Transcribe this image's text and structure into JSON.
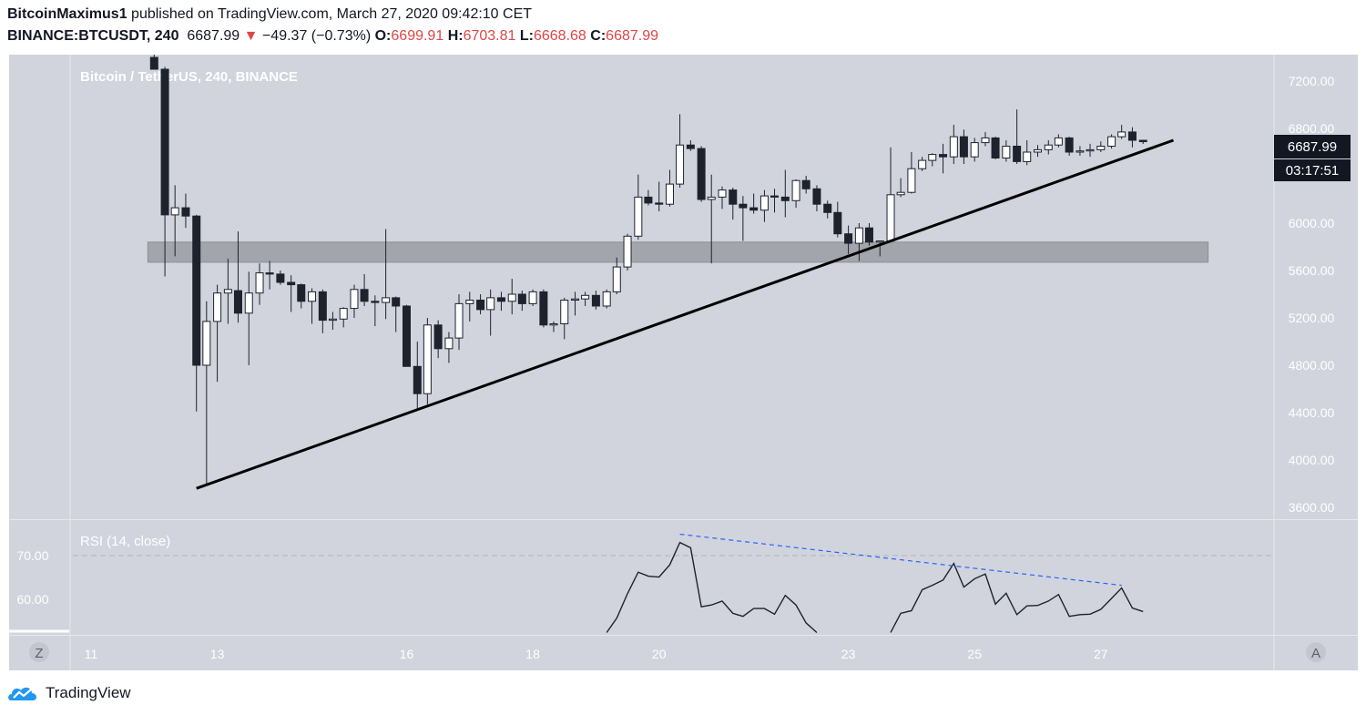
{
  "header": {
    "author": "BitcoinMaximus1",
    "published_text": "published on TradingView.com, March 27, 2020 09:42:10 CET",
    "symbol": "BINANCE:BTCUSDT, 240",
    "last_price": "6687.99",
    "change_arrow": "▼",
    "change": "−49.37 (−0.73%)",
    "o_label": "O:",
    "o_value": "6699.91",
    "h_label": "H:",
    "h_value": "6703.81",
    "l_label": "L:",
    "l_value": "6668.68",
    "c_label": "C:",
    "c_value": "6687.99"
  },
  "chart": {
    "legend": "Bitcoin / TetherUS, 240, BINANCE",
    "price_label": "6687.99",
    "countdown_label": "03:17:51",
    "rsi_label": "RSI (14, close)",
    "left_button": "Z",
    "right_button": "A",
    "colors": {
      "background": "#d1d4dc",
      "up_body": "#ffffff",
      "down_body": "#1e222d",
      "wick": "#1e222d",
      "trendline": "#000000",
      "zone": "#9b9ca3",
      "rsi_line": "#1e222d",
      "rsi_trend": "#2962ff",
      "axis_text": "#ffffff"
    }
  },
  "footer": {
    "brand": "TradingView",
    "logo_icon": "tradingview-cloud-logo"
  },
  "chart_data": [
    {
      "type": "candlestick",
      "title": "Bitcoin / TetherUS, 240, BINANCE",
      "y_ticks": [
        7200,
        6800,
        6400,
        6000,
        5600,
        5200,
        4800,
        4400,
        4000,
        3600
      ],
      "y_tick_labels": [
        "7200.00",
        "6800.00",
        "6400.00",
        "6000.00",
        "5600.00",
        "5200.00",
        "4800.00",
        "4400.00",
        "4000.00",
        "3600.00"
      ],
      "ylim": [
        3600,
        7400
      ],
      "x_ticks": [
        11,
        13,
        16,
        18,
        20,
        23,
        25,
        27
      ],
      "x_tick_labels": [
        "11",
        "13",
        "16",
        "18",
        "20",
        "23",
        "25",
        "27"
      ],
      "xlim": [
        10.5,
        29.3
      ],
      "candles": [
        {
          "t": 12.0,
          "o": 7400,
          "h": 7500,
          "l": 7300,
          "c": 7300
        },
        {
          "t": 12.17,
          "o": 7300,
          "h": 7320,
          "l": 5550,
          "c": 6070
        },
        {
          "t": 12.33,
          "o": 6070,
          "h": 6320,
          "l": 5720,
          "c": 6130
        },
        {
          "t": 12.5,
          "o": 6130,
          "h": 6250,
          "l": 5960,
          "c": 6060
        },
        {
          "t": 12.67,
          "o": 6060,
          "h": 6070,
          "l": 4410,
          "c": 4800
        },
        {
          "t": 12.83,
          "o": 4800,
          "h": 5340,
          "l": 3800,
          "c": 5170
        },
        {
          "t": 13.0,
          "o": 5170,
          "h": 5480,
          "l": 4660,
          "c": 5410
        },
        {
          "t": 13.17,
          "o": 5410,
          "h": 5700,
          "l": 5150,
          "c": 5440
        },
        {
          "t": 13.33,
          "o": 5430,
          "h": 5930,
          "l": 5160,
          "c": 5240
        },
        {
          "t": 13.5,
          "o": 5240,
          "h": 5590,
          "l": 4800,
          "c": 5410
        },
        {
          "t": 13.67,
          "o": 5410,
          "h": 5660,
          "l": 5310,
          "c": 5580
        },
        {
          "t": 13.83,
          "o": 5580,
          "h": 5680,
          "l": 5440,
          "c": 5570
        },
        {
          "t": 14.0,
          "o": 5570,
          "h": 5600,
          "l": 5480,
          "c": 5500
        },
        {
          "t": 14.17,
          "o": 5500,
          "h": 5560,
          "l": 5250,
          "c": 5480
        },
        {
          "t": 14.33,
          "o": 5480,
          "h": 5490,
          "l": 5280,
          "c": 5340
        },
        {
          "t": 14.5,
          "o": 5340,
          "h": 5450,
          "l": 5150,
          "c": 5420
        },
        {
          "t": 14.67,
          "o": 5420,
          "h": 5440,
          "l": 5070,
          "c": 5180
        },
        {
          "t": 14.83,
          "o": 5180,
          "h": 5250,
          "l": 5100,
          "c": 5190
        },
        {
          "t": 15.0,
          "o": 5190,
          "h": 5290,
          "l": 5120,
          "c": 5280
        },
        {
          "t": 15.17,
          "o": 5280,
          "h": 5480,
          "l": 5200,
          "c": 5440
        },
        {
          "t": 15.33,
          "o": 5440,
          "h": 5570,
          "l": 5300,
          "c": 5340
        },
        {
          "t": 15.5,
          "o": 5340,
          "h": 5390,
          "l": 5130,
          "c": 5330
        },
        {
          "t": 15.67,
          "o": 5330,
          "h": 5950,
          "l": 5190,
          "c": 5370
        },
        {
          "t": 15.83,
          "o": 5370,
          "h": 5380,
          "l": 5080,
          "c": 5300
        },
        {
          "t": 16.0,
          "o": 5300,
          "h": 5310,
          "l": 4790,
          "c": 4790
        },
        {
          "t": 16.17,
          "o": 4790,
          "h": 5000,
          "l": 4430,
          "c": 4560
        },
        {
          "t": 16.33,
          "o": 4560,
          "h": 5200,
          "l": 4470,
          "c": 5140
        },
        {
          "t": 16.5,
          "o": 5140,
          "h": 5180,
          "l": 4860,
          "c": 4940
        },
        {
          "t": 16.67,
          "o": 4940,
          "h": 5080,
          "l": 4820,
          "c": 5030
        },
        {
          "t": 16.83,
          "o": 5030,
          "h": 5400,
          "l": 4930,
          "c": 5320
        },
        {
          "t": 17.0,
          "o": 5320,
          "h": 5420,
          "l": 5170,
          "c": 5350
        },
        {
          "t": 17.17,
          "o": 5350,
          "h": 5400,
          "l": 5230,
          "c": 5270
        },
        {
          "t": 17.33,
          "o": 5270,
          "h": 5440,
          "l": 5050,
          "c": 5370
        },
        {
          "t": 17.5,
          "o": 5370,
          "h": 5420,
          "l": 5260,
          "c": 5340
        },
        {
          "t": 17.67,
          "o": 5340,
          "h": 5530,
          "l": 5230,
          "c": 5400
        },
        {
          "t": 17.83,
          "o": 5400,
          "h": 5430,
          "l": 5260,
          "c": 5320
        },
        {
          "t": 18.0,
          "o": 5320,
          "h": 5440,
          "l": 5300,
          "c": 5420
        },
        {
          "t": 18.17,
          "o": 5420,
          "h": 5440,
          "l": 5120,
          "c": 5140
        },
        {
          "t": 18.33,
          "o": 5140,
          "h": 5170,
          "l": 5080,
          "c": 5150
        },
        {
          "t": 18.5,
          "o": 5150,
          "h": 5370,
          "l": 5020,
          "c": 5350
        },
        {
          "t": 18.67,
          "o": 5350,
          "h": 5420,
          "l": 5220,
          "c": 5360
        },
        {
          "t": 18.83,
          "o": 5360,
          "h": 5420,
          "l": 5300,
          "c": 5390
        },
        {
          "t": 19.0,
          "o": 5390,
          "h": 5430,
          "l": 5270,
          "c": 5300
        },
        {
          "t": 19.17,
          "o": 5300,
          "h": 5440,
          "l": 5280,
          "c": 5420
        },
        {
          "t": 19.33,
          "o": 5420,
          "h": 5710,
          "l": 5400,
          "c": 5630
        },
        {
          "t": 19.5,
          "o": 5630,
          "h": 5910,
          "l": 5600,
          "c": 5890
        },
        {
          "t": 19.67,
          "o": 5890,
          "h": 6410,
          "l": 5860,
          "c": 6220
        },
        {
          "t": 19.83,
          "o": 6220,
          "h": 6280,
          "l": 6150,
          "c": 6170
        },
        {
          "t": 20.0,
          "o": 6170,
          "h": 6350,
          "l": 6100,
          "c": 6160
        },
        {
          "t": 20.17,
          "o": 6160,
          "h": 6450,
          "l": 6140,
          "c": 6330
        },
        {
          "t": 20.33,
          "o": 6330,
          "h": 6920,
          "l": 6300,
          "c": 6660
        },
        {
          "t": 20.5,
          "o": 6660,
          "h": 6700,
          "l": 6610,
          "c": 6630
        },
        {
          "t": 20.67,
          "o": 6630,
          "h": 6650,
          "l": 6180,
          "c": 6200
        },
        {
          "t": 20.83,
          "o": 6200,
          "h": 6410,
          "l": 5660,
          "c": 6220
        },
        {
          "t": 21.0,
          "o": 6220,
          "h": 6310,
          "l": 6120,
          "c": 6280
        },
        {
          "t": 21.17,
          "o": 6280,
          "h": 6300,
          "l": 6030,
          "c": 6160
        },
        {
          "t": 21.33,
          "o": 6160,
          "h": 6230,
          "l": 5850,
          "c": 6130
        },
        {
          "t": 21.5,
          "o": 6130,
          "h": 6250,
          "l": 6080,
          "c": 6110
        },
        {
          "t": 21.67,
          "o": 6110,
          "h": 6280,
          "l": 6010,
          "c": 6230
        },
        {
          "t": 21.83,
          "o": 6230,
          "h": 6290,
          "l": 6090,
          "c": 6220
        },
        {
          "t": 22.0,
          "o": 6220,
          "h": 6450,
          "l": 6050,
          "c": 6190
        },
        {
          "t": 22.17,
          "o": 6190,
          "h": 6370,
          "l": 6130,
          "c": 6360
        },
        {
          "t": 22.33,
          "o": 6360,
          "h": 6400,
          "l": 6250,
          "c": 6290
        },
        {
          "t": 22.5,
          "o": 6290,
          "h": 6320,
          "l": 6100,
          "c": 6160
        },
        {
          "t": 22.67,
          "o": 6160,
          "h": 6190,
          "l": 6040,
          "c": 6090
        },
        {
          "t": 22.83,
          "o": 6090,
          "h": 6180,
          "l": 5880,
          "c": 5910
        },
        {
          "t": 23.0,
          "o": 5910,
          "h": 5980,
          "l": 5740,
          "c": 5830
        },
        {
          "t": 23.17,
          "o": 5830,
          "h": 6000,
          "l": 5680,
          "c": 5960
        },
        {
          "t": 23.33,
          "o": 5960,
          "h": 6000,
          "l": 5810,
          "c": 5840
        },
        {
          "t": 23.5,
          "o": 5840,
          "h": 5850,
          "l": 5720,
          "c": 5850
        },
        {
          "t": 23.67,
          "o": 5850,
          "h": 6640,
          "l": 5850,
          "c": 6240
        },
        {
          "t": 23.83,
          "o": 6240,
          "h": 6380,
          "l": 6220,
          "c": 6260
        },
        {
          "t": 24.0,
          "o": 6260,
          "h": 6600,
          "l": 6250,
          "c": 6460
        },
        {
          "t": 24.17,
          "o": 6460,
          "h": 6560,
          "l": 6440,
          "c": 6530
        },
        {
          "t": 24.33,
          "o": 6530,
          "h": 6590,
          "l": 6480,
          "c": 6580
        },
        {
          "t": 24.5,
          "o": 6580,
          "h": 6670,
          "l": 6420,
          "c": 6560
        },
        {
          "t": 24.67,
          "o": 6560,
          "h": 6830,
          "l": 6500,
          "c": 6730
        },
        {
          "t": 24.83,
          "o": 6730,
          "h": 6790,
          "l": 6500,
          "c": 6560
        },
        {
          "t": 25.0,
          "o": 6560,
          "h": 6720,
          "l": 6520,
          "c": 6680
        },
        {
          "t": 25.17,
          "o": 6680,
          "h": 6770,
          "l": 6650,
          "c": 6720
        },
        {
          "t": 25.33,
          "o": 6720,
          "h": 6730,
          "l": 6540,
          "c": 6550
        },
        {
          "t": 25.5,
          "o": 6550,
          "h": 6700,
          "l": 6520,
          "c": 6650
        },
        {
          "t": 25.67,
          "o": 6650,
          "h": 6960,
          "l": 6500,
          "c": 6520
        },
        {
          "t": 25.83,
          "o": 6520,
          "h": 6700,
          "l": 6490,
          "c": 6600
        },
        {
          "t": 26.0,
          "o": 6600,
          "h": 6660,
          "l": 6560,
          "c": 6620
        },
        {
          "t": 26.17,
          "o": 6620,
          "h": 6700,
          "l": 6580,
          "c": 6660
        },
        {
          "t": 26.33,
          "o": 6660,
          "h": 6750,
          "l": 6640,
          "c": 6720
        },
        {
          "t": 26.5,
          "o": 6720,
          "h": 6730,
          "l": 6570,
          "c": 6600
        },
        {
          "t": 26.67,
          "o": 6600,
          "h": 6650,
          "l": 6570,
          "c": 6610
        },
        {
          "t": 26.83,
          "o": 6610,
          "h": 6670,
          "l": 6560,
          "c": 6620
        },
        {
          "t": 27.0,
          "o": 6620,
          "h": 6690,
          "l": 6600,
          "c": 6650
        },
        {
          "t": 27.17,
          "o": 6650,
          "h": 6750,
          "l": 6630,
          "c": 6730
        },
        {
          "t": 27.33,
          "o": 6730,
          "h": 6830,
          "l": 6710,
          "c": 6770
        },
        {
          "t": 27.5,
          "o": 6770,
          "h": 6810,
          "l": 6640,
          "c": 6700
        },
        {
          "t": 27.67,
          "o": 6700,
          "h": 6704,
          "l": 6669,
          "c": 6688
        }
      ],
      "support_zone": {
        "t_start": 11.9,
        "t_end": 28.7,
        "y_low": 5670,
        "y_high": 5840
      },
      "trendline": {
        "t_start": 12.67,
        "y_start": 3760,
        "t_end": 28.15,
        "y_end": 6700
      }
    },
    {
      "type": "line",
      "title": "RSI (14, close)",
      "y_ticks": [
        70,
        60
      ],
      "y_tick_labels": [
        "70.00",
        "60.00"
      ],
      "ylim": [
        52.4,
        78.4
      ],
      "reference_line": 70,
      "segments": [
        [
          [
            19.17,
            52.4
          ],
          [
            19.33,
            55.7
          ],
          [
            19.5,
            61.3
          ],
          [
            19.67,
            66.2
          ],
          [
            19.83,
            65.3
          ],
          [
            20.0,
            65.1
          ],
          [
            20.17,
            67.9
          ],
          [
            20.33,
            73
          ],
          [
            20.5,
            71.8
          ],
          [
            20.67,
            58.3
          ],
          [
            20.83,
            58.7
          ],
          [
            21.0,
            59.6
          ],
          [
            21.17,
            56.8
          ],
          [
            21.33,
            56.1
          ],
          [
            21.5,
            57.9
          ],
          [
            21.67,
            57.9
          ],
          [
            21.83,
            56.6
          ],
          [
            22.0,
            60.9
          ],
          [
            22.17,
            58.7
          ],
          [
            22.33,
            54.6
          ],
          [
            22.5,
            52.4
          ]
        ],
        [
          [
            23.67,
            52.4
          ],
          [
            23.83,
            56.8
          ],
          [
            24.0,
            57.4
          ],
          [
            24.17,
            62.2
          ],
          [
            24.33,
            63.2
          ],
          [
            24.5,
            64.4
          ],
          [
            24.67,
            68.2
          ],
          [
            24.83,
            62.8
          ],
          [
            25.0,
            64.7
          ],
          [
            25.17,
            65.8
          ],
          [
            25.33,
            58.9
          ],
          [
            25.5,
            61.4
          ],
          [
            25.67,
            56.5
          ],
          [
            25.83,
            58.5
          ],
          [
            26.0,
            58.6
          ],
          [
            26.17,
            59.6
          ],
          [
            26.33,
            61.1
          ],
          [
            26.5,
            56.1
          ],
          [
            26.67,
            56.5
          ],
          [
            26.83,
            56.6
          ],
          [
            27.0,
            57.7
          ],
          [
            27.17,
            60.2
          ],
          [
            27.33,
            62.6
          ],
          [
            27.5,
            58
          ],
          [
            27.67,
            57.2
          ]
        ]
      ],
      "divergence_line": {
        "t_start": 20.33,
        "y_start": 74.9,
        "t_end": 27.33,
        "y_end": 63.2
      }
    }
  ]
}
